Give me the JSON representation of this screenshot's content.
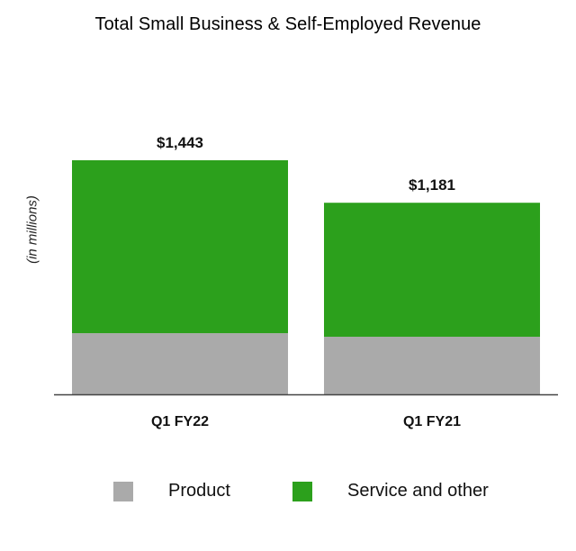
{
  "chart_data": {
    "type": "bar",
    "stacked": true,
    "title": "Total Small Business & Self-Employed Revenue",
    "ylabel": "(in millions)",
    "categories": [
      "Q1 FY22",
      "Q1 FY21"
    ],
    "totals_labels": [
      "$1,443",
      "$1,181"
    ],
    "totals": [
      1443,
      1181
    ],
    "series": [
      {
        "name": "Product",
        "values": [
          377,
          355
        ],
        "color": "#aaaaaa"
      },
      {
        "name": "Service and other",
        "values": [
          1066,
          826
        ],
        "color": "#2ca01c"
      }
    ],
    "ylim": [
      0,
      1443
    ],
    "grid": false,
    "legend_position": "bottom"
  }
}
